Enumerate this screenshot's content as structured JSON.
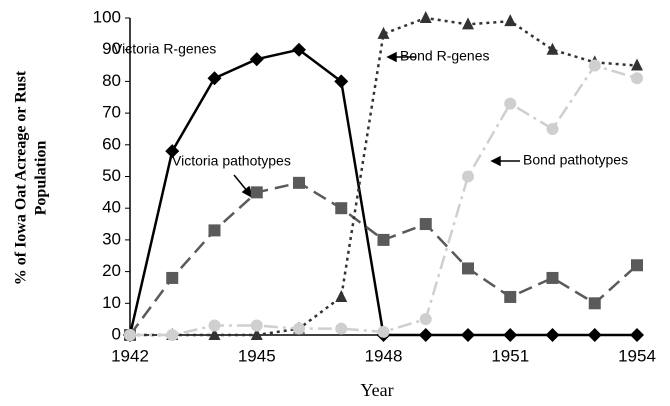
{
  "chart_data": {
    "type": "line",
    "x_label": "Year",
    "y_label": [
      "% of Iowa Oat Acreage or Rust",
      "Population"
    ],
    "x": [
      1942,
      1943,
      1944,
      1945,
      1946,
      1947,
      1948,
      1949,
      1950,
      1951,
      1952,
      1953,
      1954
    ],
    "xlim": [
      1942,
      1954
    ],
    "xticks": [
      1942,
      1945,
      1948,
      1951,
      1954
    ],
    "ylim": [
      0,
      100
    ],
    "yticks": [
      0,
      10,
      20,
      30,
      40,
      50,
      60,
      70,
      80,
      90,
      100
    ],
    "series": [
      {
        "name": "Victoria R-genes",
        "color": "#000000",
        "marker": "diamond",
        "dash": "solid",
        "values": [
          0,
          58,
          81,
          87,
          90,
          80,
          0,
          0,
          0,
          0,
          0,
          0,
          0
        ]
      },
      {
        "name": "Victoria pathotypes",
        "color": "#5a5a5a",
        "marker": "square",
        "dash": "dashed",
        "values": [
          0,
          18,
          33,
          45,
          48,
          40,
          30,
          35,
          21,
          12,
          18,
          10,
          22
        ]
      },
      {
        "name": "Bond R-genes",
        "color": "#333333",
        "marker": "triangle",
        "dash": "dotted",
        "values": [
          0,
          0,
          0,
          0,
          2,
          12,
          95,
          100,
          98,
          99,
          90,
          86,
          85
        ]
      },
      {
        "name": "Bond pathotypes",
        "color": "#cfcfcf",
        "marker": "circle",
        "dash": "dashdot",
        "values": [
          0,
          0,
          3,
          3,
          2,
          2,
          1,
          5,
          50,
          73,
          65,
          85,
          81
        ]
      }
    ]
  }
}
